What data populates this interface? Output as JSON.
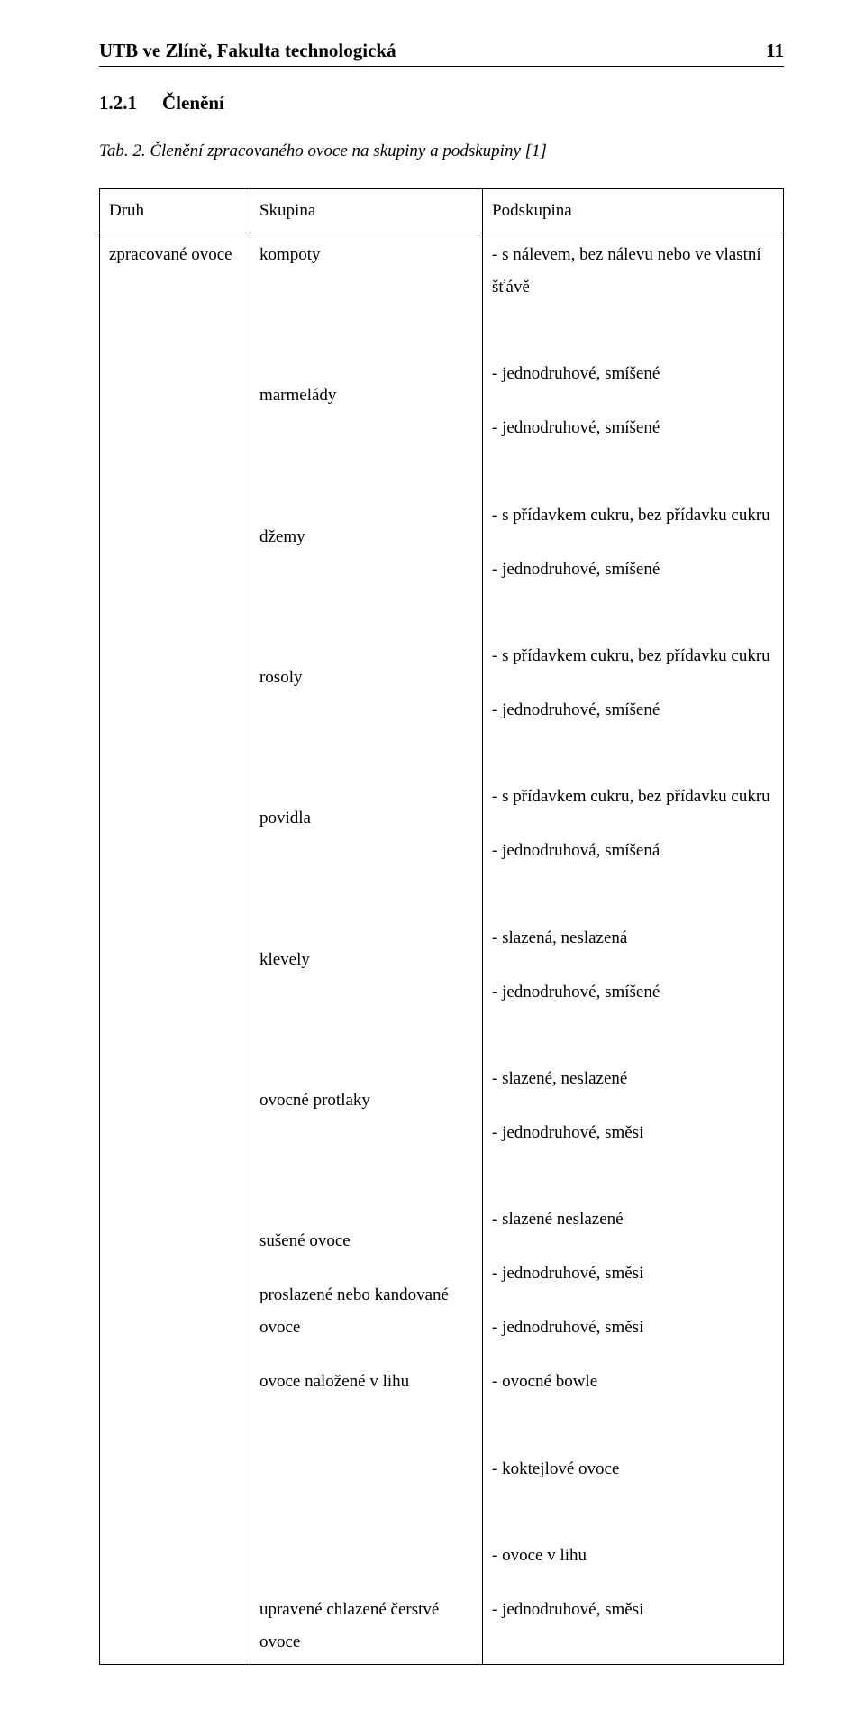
{
  "header": {
    "title": "UTB ve Zlíně, Fakulta technologická",
    "page_number": "11"
  },
  "section": {
    "number": "1.2.1",
    "title": "Členění"
  },
  "caption": {
    "prefix": "Tab. 2.",
    "text": "Členění zpracovaného ovoce na skupiny a podskupiny [1]"
  },
  "table": {
    "headers": {
      "druh": "Druh",
      "skupina": "Skupina",
      "podskupina": "Podskupina"
    },
    "druh_label": "zpracované ovoce",
    "groups": [
      {
        "group": "kompoty",
        "sub": [
          "- s nálevem, bez nálevu nebo ve vlastní šťávě",
          "",
          "- jednodruhové, smíšené"
        ]
      },
      {
        "group": "marmelády",
        "sub": [
          "- jednodruhové, smíšené",
          "",
          "- s přídavkem cukru, bez přídavku cukru"
        ]
      },
      {
        "group": "džemy",
        "sub": [
          "- jednodruhové, smíšené",
          "",
          "- s přídavkem cukru, bez přídavku cukru"
        ]
      },
      {
        "group": "rosoly",
        "sub": [
          "- jednodruhové, smíšené",
          "",
          "- s přídavkem cukru, bez přídavku cukru"
        ]
      },
      {
        "group": "povidla",
        "sub": [
          "- jednodruhová, smíšená",
          "",
          "- slazená, neslazená"
        ]
      },
      {
        "group": "klevely",
        "sub": [
          "- jednodruhové, smíšené",
          "",
          "- slazené, neslazené"
        ]
      },
      {
        "group": "ovocné protlaky",
        "sub": [
          "- jednodruhové, směsi",
          "",
          "- slazené neslazené"
        ]
      },
      {
        "group": "sušené ovoce",
        "sub": [
          "- jednodruhové, směsi"
        ]
      },
      {
        "group": "proslazené nebo kandované ovoce",
        "sub": [
          "- jednodruhové, směsi"
        ]
      },
      {
        "group": "ovoce naložené v lihu",
        "sub": [
          "- ovocné bowle",
          "",
          "- koktejlové ovoce",
          "",
          "- ovoce v lihu"
        ]
      },
      {
        "group": "upravené chlazené čerstvé ovoce",
        "sub": [
          "- jednodruhové, směsi"
        ]
      }
    ]
  }
}
